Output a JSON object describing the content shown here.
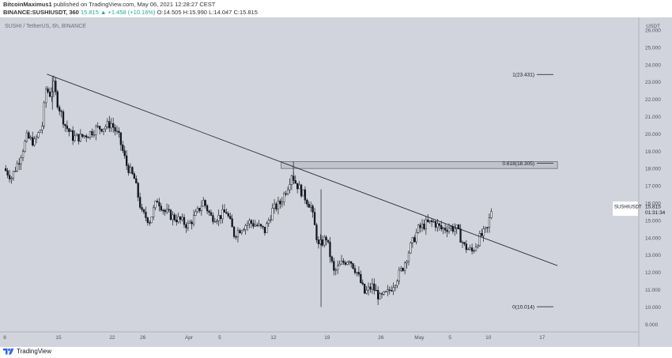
{
  "header": {
    "author": "BitcoinMaximus1",
    "published_text": "published on TradingView.com, May 06, 2021 12:28:27 CEST",
    "symbol_line": "BINANCE:SUSHIUSDT, 360",
    "last_price": "15.815",
    "change": "▲ +1.458 (+10.16%)",
    "open": "O:14.505",
    "high": "H:15.990",
    "low": "L:14.047",
    "close": "C:15.815"
  },
  "colors": {
    "background": "#d1d4dc",
    "candle": "#131722",
    "accent_up": "#26a69a"
  },
  "footer": {
    "brand": "TradingView"
  },
  "chart_data": {
    "type": "candlestick",
    "title": "SUSHI / TetherUS, 6h, BINANCE",
    "y_unit": "USDT",
    "ylim": [
      8.5,
      26.6
    ],
    "y_ticks": [
      "26.000",
      "25.000",
      "24.000",
      "23.000",
      "22.000",
      "21.000",
      "20.000",
      "19.000",
      "18.000",
      "17.000",
      "16.000",
      "15.000",
      "14.000",
      "13.000",
      "12.000",
      "11.000",
      "10.000",
      "9.000"
    ],
    "y_tick_values": [
      26,
      25,
      24,
      23,
      22,
      21,
      20,
      19,
      18,
      17,
      16,
      15,
      14,
      13,
      12,
      11,
      10,
      9
    ],
    "x_ticks": [
      "8",
      "15",
      "22",
      "26",
      "Apr",
      "5",
      "12",
      "19",
      "26",
      "May",
      "5",
      "10",
      "17"
    ],
    "x_tick_days": [
      0,
      7,
      14,
      18,
      24,
      28,
      35,
      42,
      49,
      54,
      58,
      63,
      70
    ],
    "price_label": {
      "symbol": "SUSHIUSDT",
      "value": "15.815",
      "countdown": "01:31:34"
    },
    "fib_levels": [
      {
        "label": "1(23.431)",
        "value": 23.431
      },
      {
        "label": "0.618(18.305)",
        "value": 18.305
      },
      {
        "label": "0(10.014)",
        "value": 10.014
      }
    ],
    "resistance_zone": {
      "from_day": 36,
      "to_day": 72,
      "low": 18.0,
      "high": 18.4
    },
    "trendline": {
      "start": {
        "day": 5.5,
        "price": 23.45
      },
      "end": {
        "day": 63.5,
        "price": 13.8
      }
    },
    "closes": [
      {
        "day": 0,
        "close": 18.0
      },
      {
        "day": 1,
        "close": 17.5
      },
      {
        "day": 2,
        "close": 18.5
      },
      {
        "day": 3,
        "close": 19.8
      },
      {
        "day": 4,
        "close": 19.5
      },
      {
        "day": 5,
        "close": 20.5
      },
      {
        "day": 5.5,
        "close": 22.6
      },
      {
        "day": 6,
        "close": 22.3
      },
      {
        "day": 6.5,
        "close": 22.8
      },
      {
        "day": 7,
        "close": 21.8
      },
      {
        "day": 8,
        "close": 20.5
      },
      {
        "day": 9,
        "close": 19.8
      },
      {
        "day": 10,
        "close": 19.8
      },
      {
        "day": 11,
        "close": 20.0
      },
      {
        "day": 12,
        "close": 20.3
      },
      {
        "day": 13,
        "close": 20.4
      },
      {
        "day": 14,
        "close": 20.6
      },
      {
        "day": 15,
        "close": 19.8
      },
      {
        "day": 16,
        "close": 18.2
      },
      {
        "day": 17,
        "close": 17.4
      },
      {
        "day": 18,
        "close": 15.4
      },
      {
        "day": 19,
        "close": 15.0
      },
      {
        "day": 20,
        "close": 16.2
      },
      {
        "day": 21,
        "close": 15.5
      },
      {
        "day": 22,
        "close": 15.2
      },
      {
        "day": 23,
        "close": 15.0
      },
      {
        "day": 24,
        "close": 14.7
      },
      {
        "day": 25,
        "close": 15.3
      },
      {
        "day": 26,
        "close": 16.1
      },
      {
        "day": 27,
        "close": 15.2
      },
      {
        "day": 28,
        "close": 15.2
      },
      {
        "day": 29,
        "close": 15.5
      },
      {
        "day": 30,
        "close": 14.2
      },
      {
        "day": 31,
        "close": 14.6
      },
      {
        "day": 32,
        "close": 14.9
      },
      {
        "day": 33,
        "close": 14.7
      },
      {
        "day": 34,
        "close": 14.4
      },
      {
        "day": 35,
        "close": 15.6
      },
      {
        "day": 36,
        "close": 16.0
      },
      {
        "day": 37,
        "close": 17.0
      },
      {
        "day": 37.5,
        "close": 17.7
      },
      {
        "day": 38,
        "close": 17.2
      },
      {
        "day": 39,
        "close": 16.5
      },
      {
        "day": 40,
        "close": 15.8
      },
      {
        "day": 41,
        "close": 13.5
      },
      {
        "day": 42,
        "close": 14.0
      },
      {
        "day": 43,
        "close": 12.0
      },
      {
        "day": 44,
        "close": 12.5
      },
      {
        "day": 45,
        "close": 12.8
      },
      {
        "day": 46,
        "close": 12.0
      },
      {
        "day": 47,
        "close": 10.8
      },
      {
        "day": 48,
        "close": 11.2
      },
      {
        "day": 49,
        "close": 10.5
      },
      {
        "day": 50,
        "close": 10.8
      },
      {
        "day": 51,
        "close": 11.5
      },
      {
        "day": 52,
        "close": 12.3
      },
      {
        "day": 53,
        "close": 13.5
      },
      {
        "day": 54,
        "close": 14.5
      },
      {
        "day": 55,
        "close": 14.8
      },
      {
        "day": 56,
        "close": 14.9
      },
      {
        "day": 57,
        "close": 14.5
      },
      {
        "day": 58,
        "close": 14.6
      },
      {
        "day": 59,
        "close": 14.5
      },
      {
        "day": 60,
        "close": 13.5
      },
      {
        "day": 61,
        "close": 13.2
      },
      {
        "day": 62,
        "close": 14.0
      },
      {
        "day": 63,
        "close": 14.5
      },
      {
        "day": 63.6,
        "close": 15.815
      }
    ]
  }
}
